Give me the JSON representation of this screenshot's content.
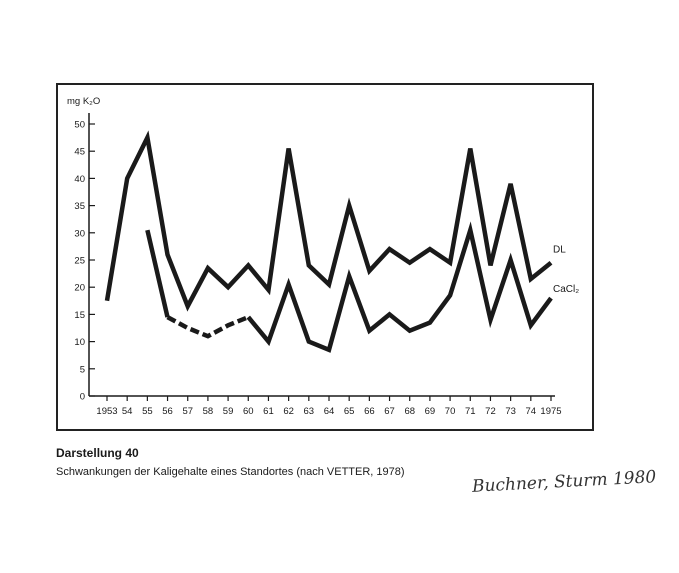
{
  "chart_data": {
    "type": "line",
    "y_unit": "mg K₂O",
    "ylim": [
      0,
      50
    ],
    "y_ticks": [
      "0",
      "5",
      "10",
      "15",
      "20",
      "25",
      "30",
      "35",
      "40",
      "45",
      "50"
    ],
    "x_tick_labels": [
      "1953",
      "54",
      "55",
      "56",
      "57",
      "58",
      "59",
      "60",
      "61",
      "62",
      "63",
      "64",
      "65",
      "66",
      "67",
      "68",
      "69",
      "70",
      "71",
      "72",
      "73",
      "74",
      "1975"
    ],
    "x": [
      1953,
      1954,
      1955,
      1956,
      1957,
      1958,
      1959,
      1960,
      1961,
      1962,
      1963,
      1964,
      1965,
      1966,
      1967,
      1968,
      1969,
      1970,
      1971,
      1972,
      1973,
      1974,
      1975
    ],
    "grid": false,
    "series": [
      {
        "name": "DL",
        "values": [
          17.5,
          40,
          47.5,
          26,
          16.5,
          23.5,
          20,
          24,
          19.5,
          45.5,
          24,
          20.5,
          35,
          23,
          27,
          24.5,
          27,
          24.5,
          45.5,
          24,
          39,
          21.5,
          24.5
        ]
      },
      {
        "name": "CaCl₂",
        "values": [
          null,
          null,
          30.5,
          14.5,
          12.5,
          11,
          13,
          14.5,
          10,
          20.5,
          10,
          8.5,
          22,
          12,
          15,
          12,
          13.5,
          18.5,
          30.5,
          14,
          25,
          13,
          18
        ],
        "dashed_x": [
          1956,
          1960
        ]
      }
    ]
  },
  "caption": {
    "title": "Darstellung 40",
    "text": "Schwankungen der Kaligehalte eines Standortes  (nach VETTER, 1978)"
  },
  "signature": "Buchner, Sturm 1980"
}
